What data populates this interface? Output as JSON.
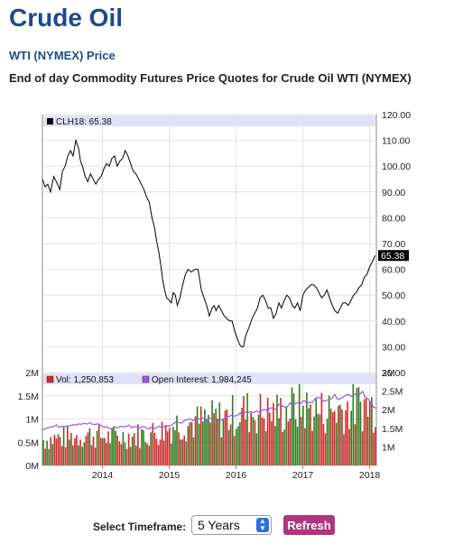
{
  "page": {
    "title": "Crude Oil",
    "subtitle_link": "WTI (NYMEX) Price",
    "description": "End of day Commodity Futures Price Quotes for Crude Oil WTI (NYMEX)"
  },
  "controls": {
    "timeframe_label": "Select Timeframe:",
    "timeframe_value": "5 Years",
    "refresh_label": "Refresh"
  },
  "colors": {
    "title": "#1c4a8c",
    "price_line": "#000000",
    "volume_up": "#2e7d1e",
    "volume_down": "#cc2a2a",
    "open_interest": "#9d55e0",
    "legend_band": "#e0e0f8",
    "refresh_button": "#b1347f"
  },
  "chart_data": [
    {
      "type": "line",
      "legend": "CLH18: 65.38",
      "series_name": "CLH18",
      "last_value_label": "65.38",
      "ylim": [
        20,
        120
      ],
      "y_ticks": [
        "20.00",
        "30.00",
        "40.00",
        "50.00",
        "60.00",
        "70.00",
        "80.00",
        "90.00",
        "100.00",
        "110.00",
        "120.00"
      ],
      "x_ticks": [
        {
          "label": "2014",
          "x": 2014.0
        },
        {
          "label": "2015",
          "x": 2015.0
        },
        {
          "label": "2016",
          "x": 2016.0
        },
        {
          "label": "2017",
          "x": 2017.0
        },
        {
          "label": "2018",
          "x": 2018.0
        }
      ],
      "xlim": [
        2013.1,
        2018.1
      ],
      "grid": true,
      "x": [
        2013.1,
        2013.14,
        2013.18,
        2013.22,
        2013.27,
        2013.31,
        2013.36,
        2013.4,
        2013.44,
        2013.48,
        2013.52,
        2013.56,
        2013.6,
        2013.64,
        2013.67,
        2013.7,
        2013.74,
        2013.78,
        2013.82,
        2013.86,
        2013.9,
        2013.94,
        2013.98,
        2014.02,
        2014.06,
        2014.1,
        2014.14,
        2014.18,
        2014.22,
        2014.26,
        2014.3,
        2014.34,
        2014.38,
        2014.42,
        2014.46,
        2014.5,
        2014.54,
        2014.58,
        2014.62,
        2014.66,
        2014.7,
        2014.74,
        2014.78,
        2014.81,
        2014.84,
        2014.87,
        2014.9,
        2014.93,
        2014.96,
        2015.0,
        2015.03,
        2015.06,
        2015.09,
        2015.12,
        2015.16,
        2015.2,
        2015.24,
        2015.28,
        2015.33,
        2015.38,
        2015.43,
        2015.48,
        2015.52,
        2015.56,
        2015.6,
        2015.64,
        2015.67,
        2015.7,
        2015.74,
        2015.78,
        2015.82,
        2015.86,
        2015.9,
        2015.94,
        2015.98,
        2016.02,
        2016.05,
        2016.08,
        2016.11,
        2016.14,
        2016.17,
        2016.2,
        2016.24,
        2016.28,
        2016.32,
        2016.36,
        2016.4,
        2016.44,
        2016.48,
        2016.52,
        2016.56,
        2016.6,
        2016.64,
        2016.68,
        2016.72,
        2016.76,
        2016.8,
        2016.84,
        2016.88,
        2016.92,
        2016.96,
        2017.0,
        2017.04,
        2017.08,
        2017.12,
        2017.16,
        2017.2,
        2017.24,
        2017.28,
        2017.32,
        2017.36,
        2017.4,
        2017.44,
        2017.48,
        2017.52,
        2017.56,
        2017.6,
        2017.64,
        2017.68,
        2017.72,
        2017.76,
        2017.8,
        2017.84,
        2017.88,
        2017.92,
        2017.96,
        2018.0,
        2018.04,
        2018.08
      ],
      "y": [
        95,
        92,
        93,
        90,
        96,
        94,
        91,
        98,
        100,
        104,
        106,
        104,
        110,
        107,
        102,
        100,
        96,
        94,
        97,
        95,
        93,
        95,
        96,
        99,
        101,
        100,
        103,
        104,
        100,
        102,
        103,
        106,
        104,
        101,
        98,
        97,
        95,
        93,
        91,
        88,
        86,
        80,
        76,
        71,
        67,
        62,
        56,
        52,
        49,
        48,
        47,
        51,
        50,
        46,
        49,
        54,
        58,
        60,
        59,
        60,
        60,
        52,
        49,
        46,
        42,
        45,
        46,
        44,
        46,
        44,
        42,
        41,
        40,
        40,
        36,
        33,
        31,
        30,
        30,
        34,
        36,
        38,
        41,
        43,
        45,
        49,
        50,
        48,
        45,
        45,
        41,
        43,
        47,
        45,
        48,
        50,
        49,
        46,
        45,
        47,
        44,
        50,
        52,
        53,
        54,
        54,
        53,
        51,
        49,
        50,
        52,
        49,
        46,
        44,
        43,
        45,
        47,
        47,
        46,
        48,
        50,
        51,
        53,
        54,
        57,
        58,
        61,
        63,
        65.38
      ],
      "volume_chart": {
        "legend_vol": "Vol: 1,250,853",
        "legend_oi": "Open Interest: 1,984,245",
        "vol_ylim": [
          0,
          2000000
        ],
        "vol_ticks": [
          "0M",
          "0.5M",
          "1M",
          "1.5M",
          "2M"
        ],
        "oi_ylim": [
          500000,
          3000000
        ],
        "oi_ticks": [
          "1M",
          "1.5M",
          "2M",
          "2.5M",
          "3M"
        ],
        "volume_x": [
          2013.1,
          2013.3,
          2013.5,
          2013.7,
          2013.9,
          2014.1,
          2014.3,
          2014.5,
          2014.7,
          2014.9,
          2015.1,
          2015.3,
          2015.5,
          2015.7,
          2015.9,
          2016.1,
          2016.3,
          2016.5,
          2016.7,
          2016.9,
          2017.1,
          2017.3,
          2017.5,
          2017.7,
          2017.9,
          2018.08
        ],
        "volume_avg": [
          550000,
          580000,
          600000,
          650000,
          650000,
          600000,
          620000,
          650000,
          680000,
          750000,
          900000,
          900000,
          950000,
          1000000,
          1050000,
          1150000,
          1150000,
          1100000,
          1150000,
          1250000,
          1200000,
          1150000,
          1200000,
          1250000,
          1300000,
          1250853
        ],
        "open_interest": [
          1500000,
          1550000,
          1600000,
          1650000,
          1600000,
          1500000,
          1550000,
          1550000,
          1500000,
          1550000,
          1650000,
          1750000,
          1750000,
          1700000,
          1800000,
          1900000,
          1950000,
          2050000,
          2100000,
          2150000,
          2250000,
          2300000,
          2350000,
          2400000,
          2500000,
          1984245
        ]
      }
    }
  ]
}
